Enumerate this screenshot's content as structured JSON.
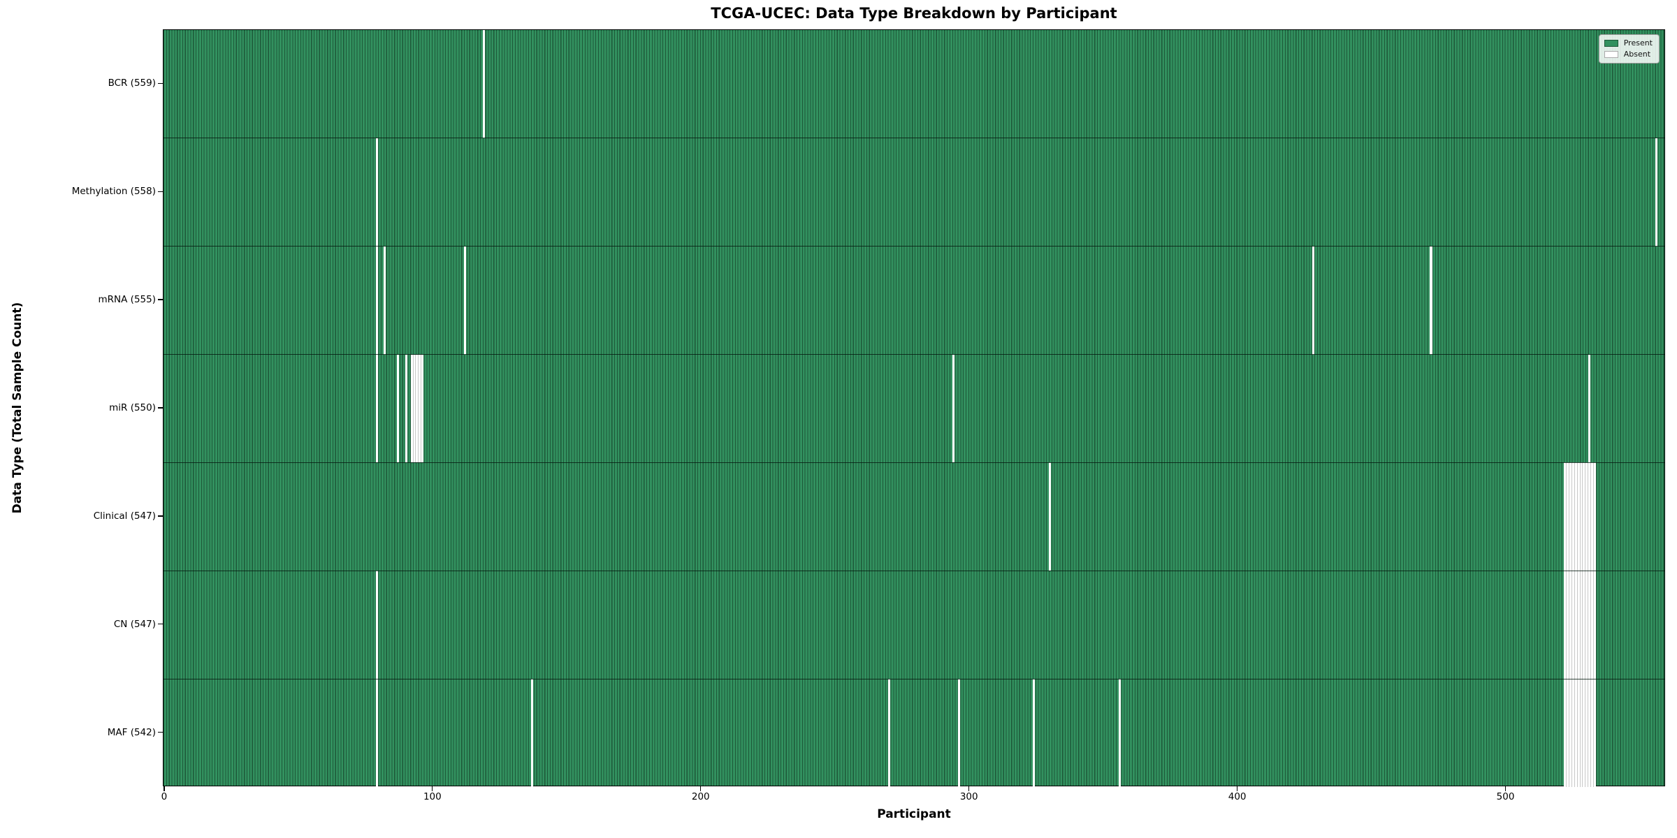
{
  "chart_data": {
    "type": "heatmap",
    "title": "TCGA-UCEC: Data Type Breakdown by Participant",
    "xlabel": "Participant",
    "ylabel": "Data Type (Total Sample Count)",
    "x_ticks": [
      0,
      100,
      200,
      300,
      400,
      500
    ],
    "total_participants": 560,
    "xlim": [
      -0.5,
      559.5
    ],
    "grid": false,
    "legend_position": "upper right",
    "legend": [
      {
        "label": "Present",
        "color": "#32915f"
      },
      {
        "label": "Absent",
        "color": "#ffffff"
      }
    ],
    "colors": {
      "present_fill": "#32915f",
      "bar_edge": "#1d5838",
      "absent_fill": "#ffffff",
      "absent_band_edge": "#c8c8c8"
    },
    "rows": [
      {
        "data_type": "BCR",
        "count": 559,
        "label": "BCR (559)",
        "absent": [
          119
        ]
      },
      {
        "data_type": "Methylation",
        "count": 558,
        "label": "Methylation (558)",
        "absent": [
          79,
          556
        ]
      },
      {
        "data_type": "mRNA",
        "count": 555,
        "label": "mRNA (555)",
        "absent": [
          79,
          82,
          112,
          428,
          472
        ]
      },
      {
        "data_type": "miR",
        "count": 550,
        "label": "miR (550)",
        "absent": [
          79,
          87,
          90,
          92,
          93,
          94,
          95,
          96,
          294,
          531
        ]
      },
      {
        "data_type": "Clinical",
        "count": 547,
        "label": "Clinical (547)",
        "absent": [
          330,
          522,
          523,
          524,
          525,
          526,
          527,
          528,
          529,
          530,
          531,
          532,
          533
        ]
      },
      {
        "data_type": "CN",
        "count": 547,
        "label": "CN (547)",
        "absent": [
          79,
          522,
          523,
          524,
          525,
          526,
          527,
          528,
          529,
          530,
          531,
          532,
          533
        ]
      },
      {
        "data_type": "MAF",
        "count": 542,
        "label": "MAF (542)",
        "absent": [
          79,
          137,
          270,
          296,
          324,
          356,
          522,
          523,
          524,
          525,
          526,
          527,
          528,
          529,
          530,
          531,
          532,
          533
        ]
      }
    ]
  }
}
